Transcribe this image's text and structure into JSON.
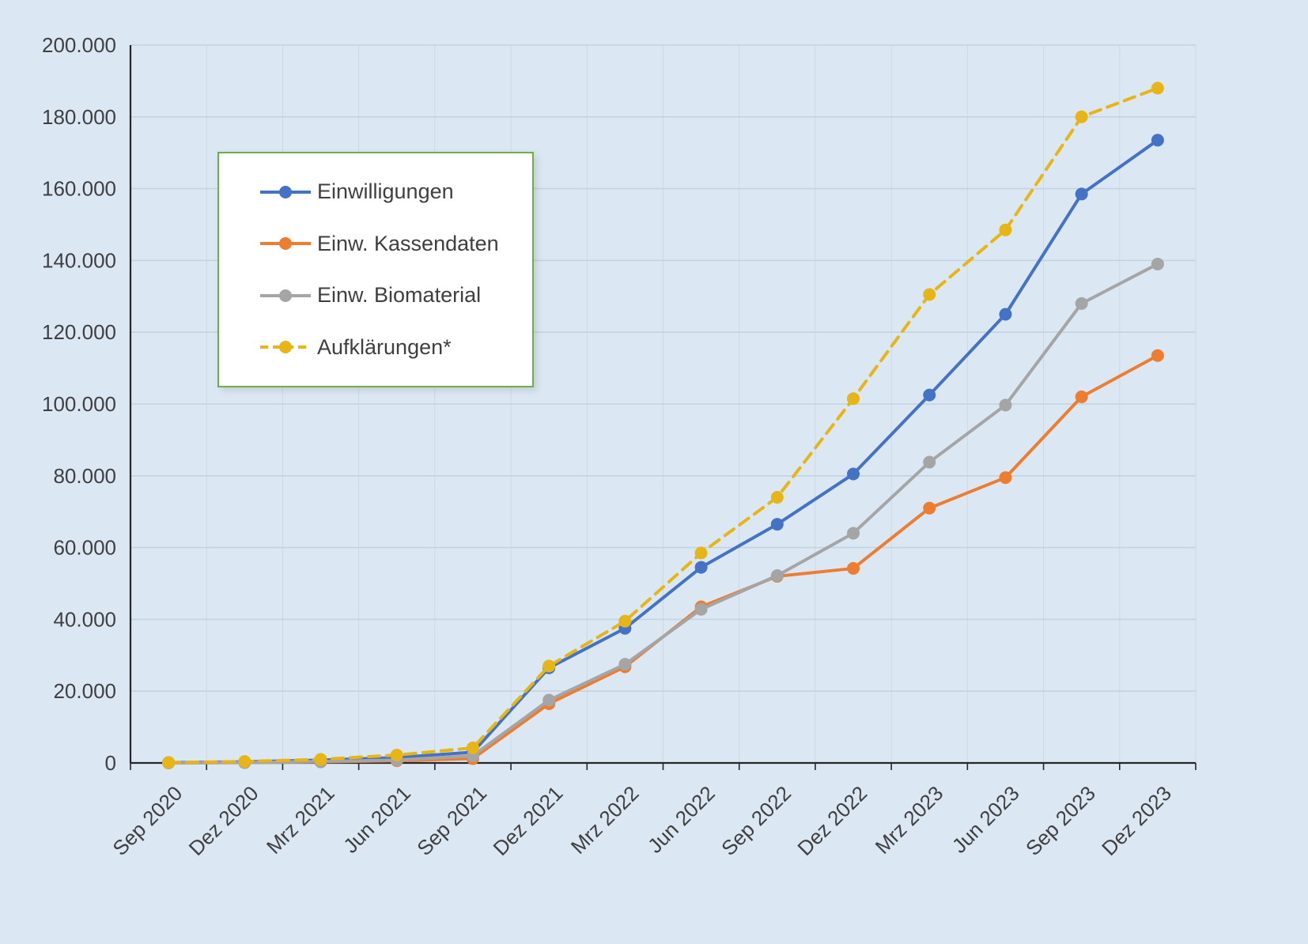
{
  "colors": {
    "background": "#DBE8F4",
    "gridline": "#C4D2E1",
    "axis": "#262626",
    "text": "#3F3F3F",
    "legend_border": "#70AD47",
    "legend_background": "#FFFFFF"
  },
  "chart_data": {
    "type": "line",
    "title": "",
    "xlabel": "",
    "ylabel": "",
    "ylim": [
      0,
      200000
    ],
    "ytick_step": 20000,
    "ytick_labels": [
      "0",
      "20.000",
      "40.000",
      "60.000",
      "80.000",
      "100.000",
      "120.000",
      "140.000",
      "160.000",
      "180.000",
      "200.000"
    ],
    "grid": true,
    "legend_position": "upper-left",
    "categories": [
      "Sep 2020",
      "Dez 2020",
      "Mrz 2021",
      "Jun 2021",
      "Sep 2021",
      "Dez 2021",
      "Mrz 2022",
      "Jun 2022",
      "Sep 2022",
      "Dez 2022",
      "Mrz 2023",
      "Jun 2023",
      "Sep 2023",
      "Dez 2023"
    ],
    "series": [
      {
        "name": "Einwilligungen",
        "color": "#4472C4",
        "dash": false,
        "values": [
          100,
          300,
          800,
          1500,
          3000,
          26500,
          37500,
          54500,
          66500,
          80500,
          102500,
          125000,
          158500,
          173500
        ]
      },
      {
        "name": "Einw. Kassendaten",
        "color": "#ED7D31",
        "dash": false,
        "values": [
          0,
          100,
          300,
          600,
          1200,
          16500,
          26800,
          43500,
          52000,
          54200,
          71000,
          79500,
          102000,
          113500
        ]
      },
      {
        "name": "Einw. Biomaterial",
        "color": "#A5A5A5",
        "dash": false,
        "values": [
          0,
          100,
          400,
          800,
          2000,
          17500,
          27500,
          42800,
          52200,
          64000,
          83800,
          99700,
          128000,
          139000
        ]
      },
      {
        "name": "Aufklärungen*",
        "color": "#E7B516",
        "dash": true,
        "values": [
          100,
          400,
          1000,
          2200,
          4200,
          27000,
          39500,
          58500,
          74000,
          101500,
          130500,
          148500,
          180000,
          188000
        ]
      }
    ]
  }
}
